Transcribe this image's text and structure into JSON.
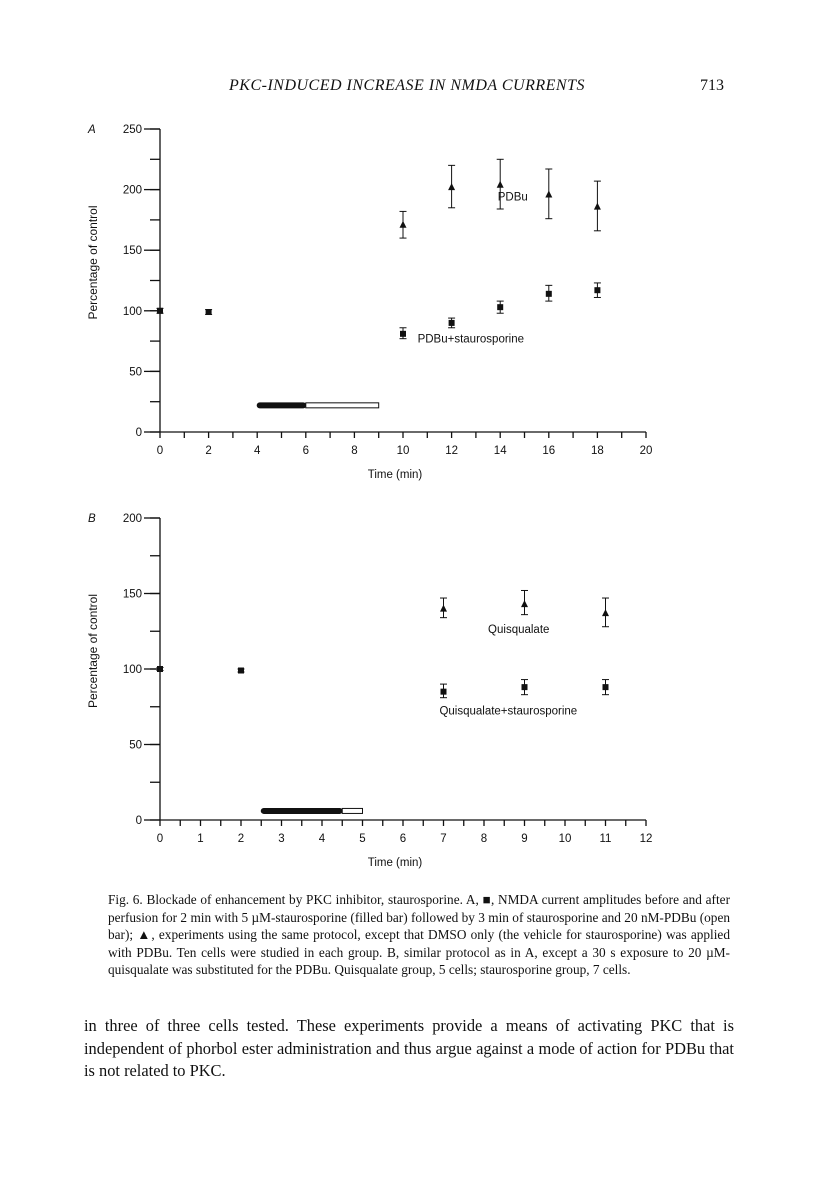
{
  "header": {
    "running_title": "PKC-INDUCED INCREASE IN NMDA CURRENTS",
    "page_number": "713"
  },
  "chart_data": [
    {
      "panel": "A",
      "type": "scatter",
      "xlabel": "Time (min)",
      "ylabel": "Percentage of control",
      "xlim": [
        0,
        20
      ],
      "ylim": [
        0,
        250
      ],
      "x_ticks": [
        0,
        2,
        4,
        6,
        8,
        10,
        12,
        14,
        16,
        18,
        20
      ],
      "y_ticks": [
        0,
        50,
        100,
        150,
        200,
        250
      ],
      "grid": false,
      "series": [
        {
          "name": "PDBu",
          "marker": "triangle",
          "x": [
            10,
            12,
            14,
            16,
            18
          ],
          "y": [
            171,
            202,
            204,
            196,
            186
          ],
          "err_low": [
            160,
            185,
            184,
            176,
            166
          ],
          "err_high": [
            182,
            220,
            225,
            217,
            207
          ],
          "label_at": [
            13.9,
            191
          ]
        },
        {
          "name": "PDBu+staurosporine",
          "marker": "square",
          "x": [
            0,
            2,
            10,
            12,
            14,
            16,
            18
          ],
          "y": [
            100,
            99,
            81,
            90,
            103,
            114,
            117
          ],
          "err_low": [
            98,
            97,
            77,
            86,
            98,
            108,
            111
          ],
          "err_high": [
            102,
            101,
            86,
            94,
            108,
            121,
            123
          ],
          "label_at": [
            10.6,
            74
          ]
        }
      ],
      "bars": [
        {
          "kind": "filled",
          "x": [
            4,
            6
          ],
          "y": 22
        },
        {
          "kind": "open",
          "x": [
            6,
            9
          ],
          "y": 22
        }
      ]
    },
    {
      "panel": "B",
      "type": "scatter",
      "xlabel": "Time (min)",
      "ylabel": "Percentage of control",
      "xlim": [
        0,
        12
      ],
      "ylim": [
        0,
        200
      ],
      "x_ticks": [
        0,
        1,
        2,
        3,
        4,
        5,
        6,
        7,
        8,
        9,
        10,
        11,
        12
      ],
      "y_ticks": [
        0,
        50,
        100,
        150,
        200
      ],
      "grid": false,
      "series": [
        {
          "name": "Quisqualate",
          "marker": "triangle",
          "x": [
            7,
            9,
            11
          ],
          "y": [
            140,
            143,
            137
          ],
          "err_low": [
            134,
            136,
            128
          ],
          "err_high": [
            147,
            152,
            147
          ],
          "label_at": [
            8.1,
            124
          ]
        },
        {
          "name": "Quisqualate+staurosporine",
          "marker": "square",
          "x": [
            0,
            2,
            7,
            9,
            11
          ],
          "y": [
            100,
            99,
            85,
            88,
            88
          ],
          "err_low": [
            99,
            98,
            81,
            83,
            83
          ],
          "err_high": [
            101,
            100,
            90,
            93,
            93
          ],
          "label_at": [
            6.9,
            70
          ]
        }
      ],
      "bars": [
        {
          "kind": "filled",
          "x": [
            2.5,
            4.5
          ],
          "y": 6
        },
        {
          "kind": "open",
          "x": [
            4.5,
            5
          ],
          "y": 6
        }
      ]
    }
  ],
  "caption": "Fig. 6. Blockade of enhancement by PKC inhibitor, staurosporine. A, ■, NMDA current amplitudes before and after perfusion for 2 min with 5 µM-staurosporine (filled bar) followed by 3 min of staurosporine and 20 nM-PDBu (open bar); ▲, experiments using the same protocol, except that DMSO only (the vehicle for staurosporine) was applied with PDBu. Ten cells were studied in each group. B, similar protocol as in A, except a 30 s exposure to 20 µM-quisqualate was substituted for the PDBu. Quisqualate group, 5 cells; staurosporine group, 7 cells.",
  "body_text": "in three of three cells tested. These experiments provide a means of activating PKC that is independent of phorbol ester administration and thus argue against a mode of action for PDBu that is not related to PKC."
}
